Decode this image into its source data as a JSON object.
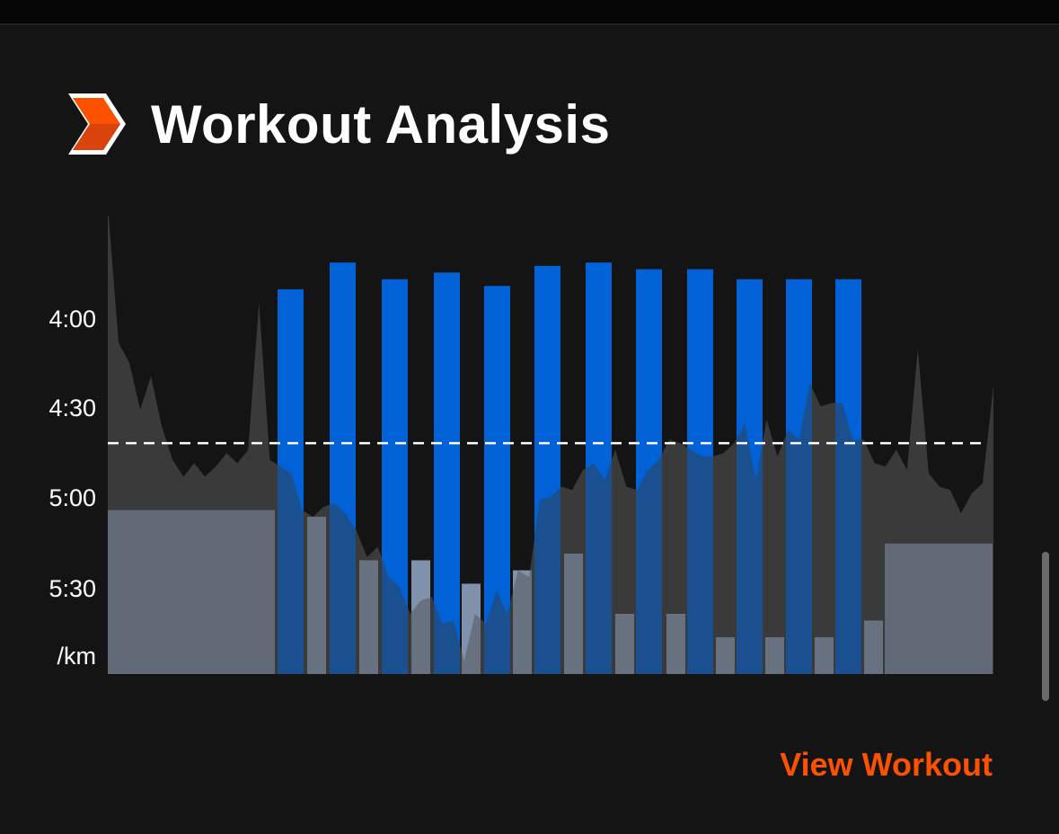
{
  "header": {
    "title": "Workout Analysis",
    "logo_icon": "strava-chevron-icon",
    "accent_color": "#fc5200"
  },
  "link": {
    "label": "View Workout"
  },
  "colors": {
    "interval_bar": "#0062d6",
    "other_bar": "#aac4e6",
    "pace_area": "#3a3a3a",
    "reference_line": "#ffffff",
    "background": "#141414"
  },
  "chart_data": {
    "type": "bar",
    "y_axis": {
      "ticks": [
        "4:00",
        "4:30",
        "5:00",
        "5:30"
      ],
      "tick_values_sec_per_km": [
        240,
        270,
        300,
        330
      ],
      "unit": "/km",
      "range_sec_per_km": [
        359,
        222
      ],
      "inverted": true
    },
    "reference_line_sec_per_km": 290,
    "warmup_bar_sec_per_km": 310,
    "cooldown_bar_sec_per_km": 320,
    "interval_bars_sec_per_km": [
      244,
      236,
      241,
      239,
      243,
      237,
      236,
      238,
      238,
      241,
      241,
      241
    ],
    "recovery_bars_sec_per_km": [
      312,
      325,
      325,
      332,
      328,
      323,
      341,
      341,
      348,
      348,
      348,
      343
    ],
    "pace_series_sec_per_km": [
      219,
      260,
      266,
      280,
      270,
      285,
      295,
      300,
      296,
      300,
      297,
      293,
      296,
      292,
      248,
      295,
      297,
      299,
      310,
      312,
      309,
      308,
      311,
      316,
      324,
      321,
      330,
      333,
      341,
      337,
      336,
      344,
      343,
      355,
      341,
      344,
      334,
      341,
      328,
      330,
      307,
      306,
      303,
      304,
      298,
      296,
      301,
      292,
      303,
      304,
      298,
      295,
      289,
      290,
      292,
      294,
      294,
      293,
      290,
      284,
      301,
      283,
      294,
      286,
      289,
      272,
      279,
      278,
      278,
      289,
      289,
      296,
      297,
      292,
      298,
      262,
      299,
      303,
      304,
      311,
      305,
      302,
      273
    ]
  }
}
